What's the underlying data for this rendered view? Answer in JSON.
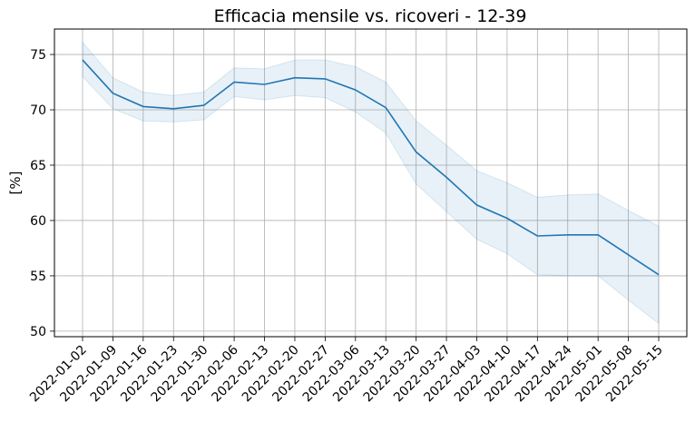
{
  "chart_data": {
    "type": "line",
    "title": "Efficacia mensile vs. ricoveri - 12-39",
    "xlabel": "",
    "ylabel": "[%]",
    "ylim": [
      49.5,
      77.3
    ],
    "yticks": [
      50,
      55,
      60,
      65,
      70,
      75
    ],
    "grid": true,
    "x": [
      "2022-01-02",
      "2022-01-09",
      "2022-01-16",
      "2022-01-23",
      "2022-01-30",
      "2022-02-06",
      "2022-02-13",
      "2022-02-20",
      "2022-02-27",
      "2022-03-06",
      "2022-03-13",
      "2022-03-20",
      "2022-03-27",
      "2022-04-03",
      "2022-04-10",
      "2022-04-17",
      "2022-04-24",
      "2022-05-01",
      "2022-05-08",
      "2022-05-15"
    ],
    "series": [
      {
        "values": [
          74.5,
          71.5,
          70.3,
          70.1,
          70.4,
          72.5,
          72.3,
          72.9,
          72.8,
          71.8,
          70.2,
          66.2,
          63.9,
          61.4,
          60.2,
          58.6,
          58.7,
          58.7,
          56.9,
          55.1
        ],
        "lower": [
          73.0,
          70.1,
          69.0,
          68.9,
          69.1,
          71.2,
          70.9,
          71.3,
          71.1,
          69.8,
          67.9,
          63.3,
          60.8,
          58.3,
          57.0,
          55.1,
          55.0,
          55.0,
          52.8,
          50.7
        ],
        "upper": [
          76.1,
          72.9,
          71.6,
          71.3,
          71.6,
          73.8,
          73.7,
          74.5,
          74.5,
          73.9,
          72.5,
          69.0,
          66.8,
          64.5,
          63.4,
          62.1,
          62.3,
          62.4,
          60.9,
          59.5
        ],
        "color": "#1f77b4",
        "band_color": "#1f77b4"
      }
    ]
  }
}
